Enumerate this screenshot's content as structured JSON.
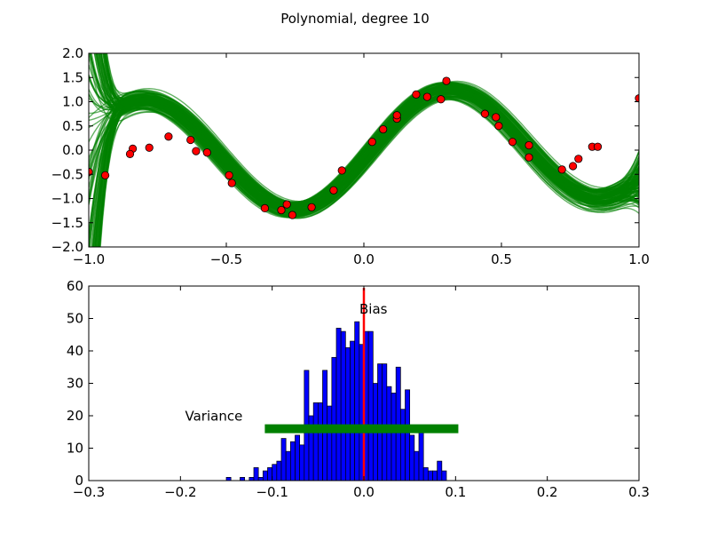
{
  "figure_title": "Polynomial, degree 10",
  "colors": {
    "fit": "#008000",
    "points": "#ff0000",
    "hist": "#0000ff",
    "bias_line": "#ff0000",
    "variance_bar": "#008000"
  },
  "chart_data": [
    {
      "type": "line",
      "title": "Polynomial, degree 10",
      "xlabel": "",
      "ylabel": "",
      "xlim": [
        -1.0,
        1.0
      ],
      "ylim": [
        -2.0,
        2.0
      ],
      "xticks": [
        -1.0,
        -0.5,
        0.0,
        0.5,
        1.0
      ],
      "xtick_labels": [
        "−1.0",
        "−0.5",
        "0.0",
        "0.5",
        "1.0"
      ],
      "yticks": [
        -2.0,
        -1.5,
        -1.0,
        -0.5,
        0.0,
        0.5,
        1.0,
        1.5,
        2.0
      ],
      "ytick_labels": [
        "−2.0",
        "−1.5",
        "−1.0",
        "−0.5",
        "0.0",
        "0.5",
        "1.0",
        "1.5",
        "2.0"
      ],
      "grid": false,
      "fitted_curves_count": 120,
      "scatter_points": [
        [
          -1.0,
          -0.45
        ],
        [
          -0.94,
          -0.52
        ],
        [
          -0.84,
          0.03
        ],
        [
          -0.85,
          -0.08
        ],
        [
          -0.78,
          0.05
        ],
        [
          -0.71,
          0.28
        ],
        [
          -0.63,
          0.21
        ],
        [
          -0.61,
          -0.02
        ],
        [
          -0.57,
          -0.05
        ],
        [
          -0.49,
          -0.52
        ],
        [
          -0.48,
          -0.68
        ],
        [
          -0.36,
          -1.2
        ],
        [
          -0.3,
          -1.24
        ],
        [
          -0.28,
          -1.12
        ],
        [
          -0.26,
          -1.34
        ],
        [
          -0.19,
          -1.18
        ],
        [
          -0.11,
          -0.83
        ],
        [
          -0.08,
          -0.42
        ],
        [
          0.03,
          0.17
        ],
        [
          0.07,
          0.43
        ],
        [
          0.12,
          0.65
        ],
        [
          0.12,
          0.72
        ],
        [
          0.19,
          1.15
        ],
        [
          0.23,
          1.1
        ],
        [
          0.28,
          1.05
        ],
        [
          0.3,
          1.43
        ],
        [
          0.44,
          0.75
        ],
        [
          0.48,
          0.68
        ],
        [
          0.49,
          0.5
        ],
        [
          0.54,
          0.17
        ],
        [
          0.6,
          0.1
        ],
        [
          0.6,
          -0.15
        ],
        [
          0.72,
          -0.4
        ],
        [
          0.76,
          -0.33
        ],
        [
          0.78,
          -0.18
        ],
        [
          0.83,
          0.07
        ],
        [
          0.85,
          0.07
        ],
        [
          1.0,
          1.07
        ]
      ]
    },
    {
      "type": "bar",
      "title": "",
      "xlabel": "",
      "ylabel": "",
      "xlim": [
        -0.3,
        0.3
      ],
      "ylim": [
        0,
        60
      ],
      "xticks": [
        -0.3,
        -0.2,
        -0.1,
        0.0,
        0.1,
        0.2,
        0.3
      ],
      "xtick_labels": [
        "−0.3",
        "−0.2",
        "−0.1",
        "0.0",
        "0.1",
        "0.2",
        "0.3"
      ],
      "yticks": [
        0,
        10,
        20,
        30,
        40,
        50,
        60
      ],
      "ytick_labels": [
        "0",
        "10",
        "20",
        "30",
        "40",
        "50",
        "60"
      ],
      "grid": false,
      "bin_start": -0.15,
      "bin_width": 0.005,
      "counts": [
        1,
        0,
        0,
        1,
        0,
        1,
        4,
        1,
        3,
        4,
        5,
        6,
        13,
        9,
        12,
        14,
        11,
        34,
        20,
        24,
        24,
        34,
        23,
        38,
        47,
        46,
        41,
        43,
        49,
        42,
        46,
        46,
        30,
        36,
        36,
        29,
        27,
        35,
        22,
        28,
        14,
        9,
        15,
        4,
        3,
        3,
        6,
        3
      ],
      "bias_x": 0.0,
      "bias_label": "Bias",
      "variance_label": "Variance",
      "variance_range": [
        -0.108,
        0.103
      ],
      "variance_y": 16
    }
  ]
}
